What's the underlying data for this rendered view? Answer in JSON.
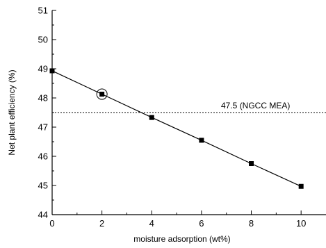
{
  "chart_data": {
    "type": "scatter",
    "title": "",
    "xlabel": "moisture adsorption (wt%)",
    "ylabel": "Net plant efficiency (%)",
    "xlim": [
      0,
      11
    ],
    "ylim": [
      44,
      51
    ],
    "x_ticks": [
      0,
      2,
      4,
      6,
      8,
      10
    ],
    "y_ticks": [
      44,
      45,
      46,
      47,
      48,
      49,
      50,
      51
    ],
    "grid": false,
    "series": [
      {
        "x": [
          0,
          2,
          4,
          6,
          8,
          10
        ],
        "y": [
          48.93,
          48.13,
          47.33,
          46.55,
          45.75,
          44.97
        ],
        "marker": "square",
        "line": "solid",
        "color": "#000000"
      }
    ],
    "highlighted_point": {
      "x": 2,
      "y": 48.13
    },
    "reference_line": {
      "y": 47.5,
      "style": "dotted",
      "label": "47.5 (NGCC MEA)"
    }
  }
}
